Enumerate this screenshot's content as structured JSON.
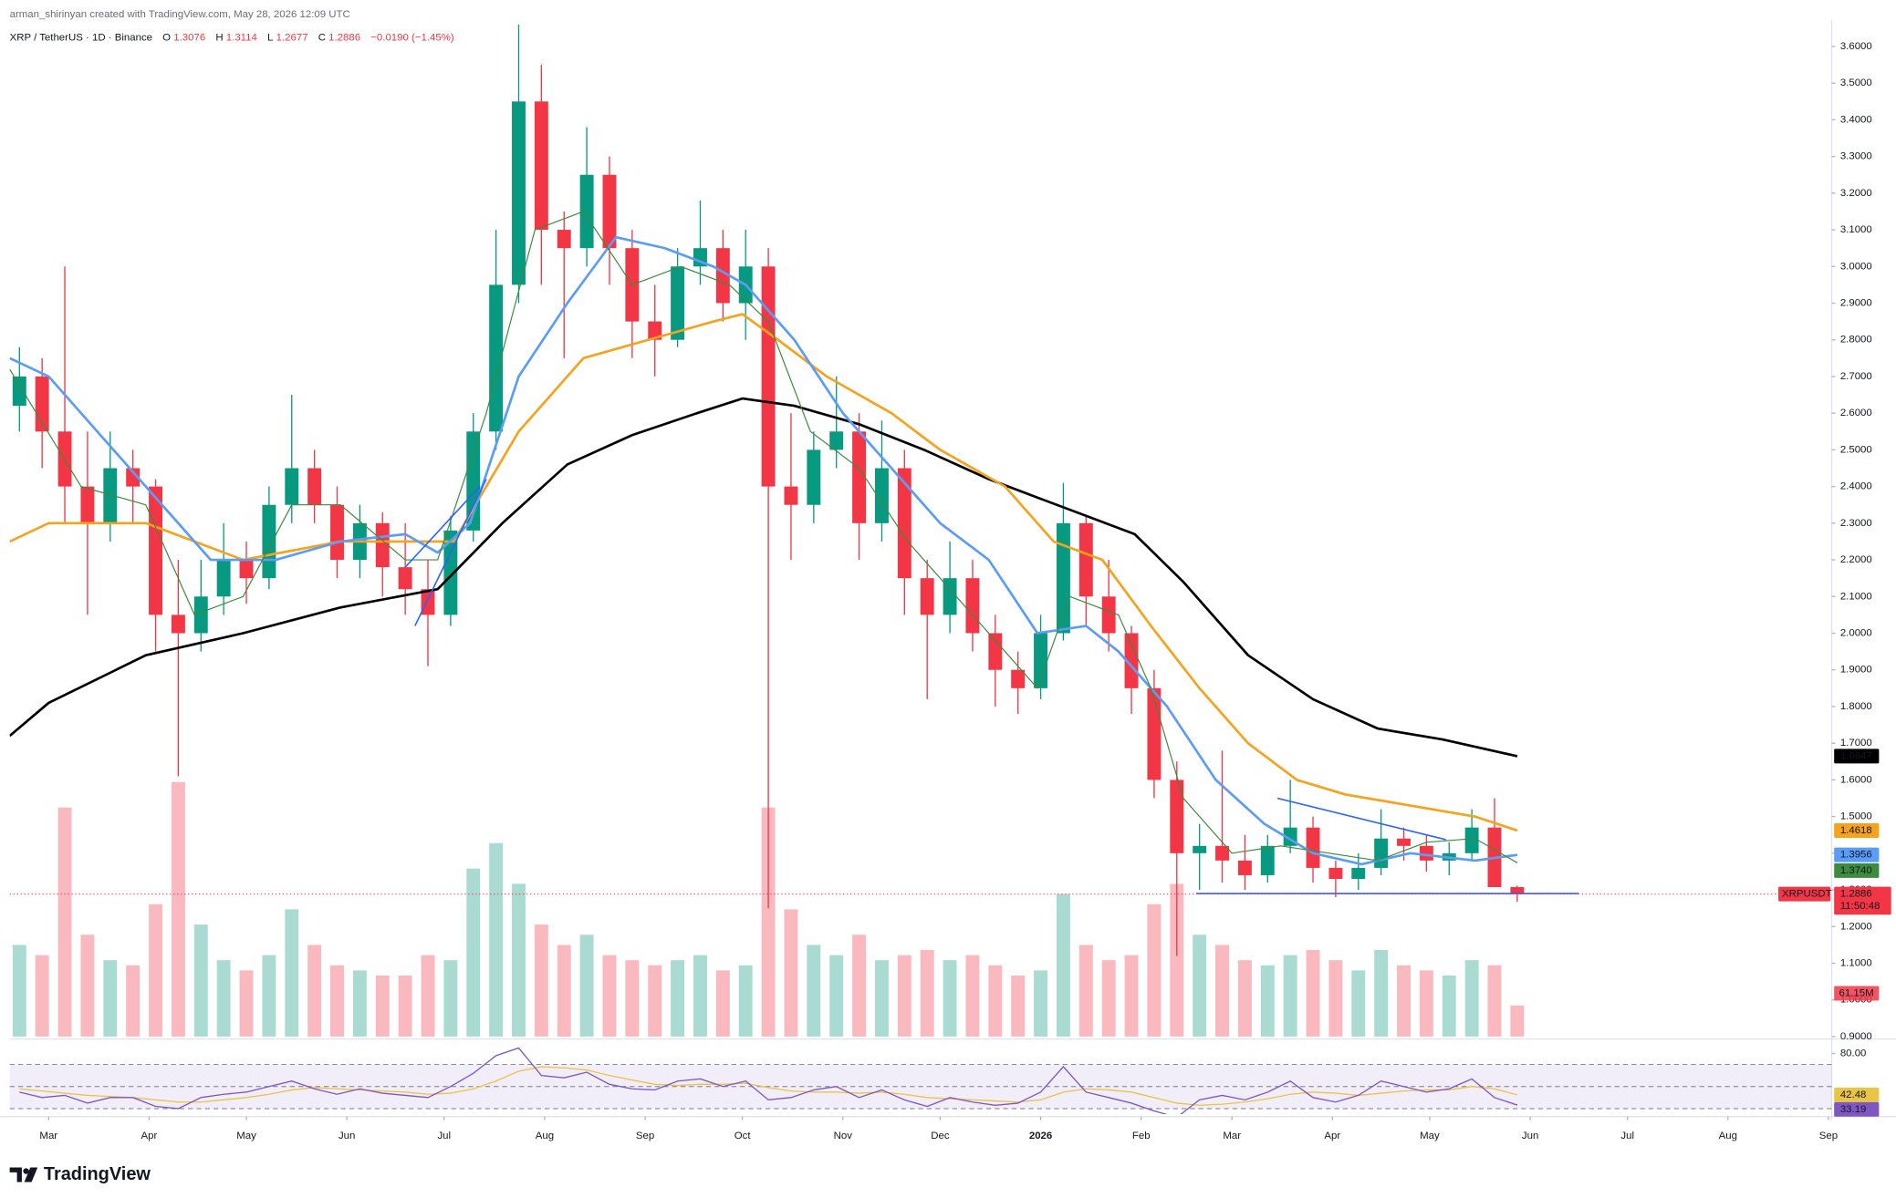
{
  "chart_data": {
    "type": "candlestick",
    "header": "arman_shirinyan created with TradingView.com, May 28, 2026 12:09 UTC",
    "symbol": "XRP / TetherUS · 1D · Binance",
    "ohlc_letters": [
      "O",
      "H",
      "L",
      "C"
    ],
    "change": "−0.0190 (−1.45%)",
    "up_color": "#089981",
    "down_color": "#f23645",
    "candles": {
      "x": [
        -9,
        -2,
        5,
        12,
        19,
        26,
        33,
        40,
        47,
        54,
        61,
        68,
        75,
        82,
        89,
        96,
        103,
        110,
        117,
        124,
        131,
        138,
        145,
        152,
        159,
        166,
        173,
        180,
        187,
        194,
        201,
        208,
        215,
        222,
        229,
        236,
        243,
        250,
        257,
        264,
        271,
        278,
        285,
        292,
        299,
        306,
        313,
        320,
        327,
        334,
        341,
        348,
        355,
        362,
        369,
        376,
        383,
        390,
        397,
        404,
        411,
        418,
        425,
        432,
        439,
        446,
        453
      ],
      "open": [
        2.62,
        2.7,
        2.55,
        2.4,
        2.3,
        2.45,
        2.4,
        2.05,
        2.0,
        2.1,
        2.2,
        2.15,
        2.35,
        2.45,
        2.35,
        2.2,
        2.3,
        2.18,
        2.12,
        2.05,
        2.28,
        2.55,
        2.95,
        3.45,
        3.1,
        3.05,
        3.25,
        3.05,
        2.85,
        2.8,
        3.0,
        3.05,
        2.9,
        3.0,
        2.4,
        2.35,
        2.5,
        2.55,
        2.3,
        2.45,
        2.15,
        2.05,
        2.15,
        2.0,
        1.9,
        1.85,
        2.0,
        2.3,
        2.1,
        2.0,
        1.85,
        1.6,
        1.4,
        1.42,
        1.38,
        1.34,
        1.42,
        1.47,
        1.36,
        1.33,
        1.36,
        1.44,
        1.42,
        1.38,
        1.4,
        1.47,
        1.3076
      ],
      "high": [
        2.78,
        2.75,
        3.0,
        2.55,
        2.55,
        2.5,
        2.42,
        2.2,
        2.2,
        2.3,
        2.25,
        2.4,
        2.65,
        2.5,
        2.4,
        2.35,
        2.33,
        2.3,
        2.2,
        2.32,
        2.6,
        3.1,
        3.66,
        3.55,
        3.15,
        3.38,
        3.3,
        3.1,
        2.95,
        3.05,
        3.18,
        3.1,
        3.1,
        3.05,
        2.6,
        2.55,
        2.7,
        2.6,
        2.58,
        2.5,
        2.2,
        2.25,
        2.2,
        2.05,
        1.95,
        2.05,
        2.41,
        2.32,
        2.2,
        2.02,
        1.9,
        1.65,
        1.48,
        1.68,
        1.45,
        1.45,
        1.6,
        1.5,
        1.38,
        1.4,
        1.52,
        1.47,
        1.45,
        1.43,
        1.52,
        1.55,
        1.3114
      ],
      "low": [
        2.55,
        2.45,
        2.3,
        2.05,
        2.25,
        2.3,
        1.95,
        1.61,
        1.95,
        2.05,
        2.08,
        2.12,
        2.3,
        2.3,
        2.15,
        2.15,
        2.1,
        2.05,
        1.91,
        2.02,
        2.25,
        2.5,
        2.9,
        2.95,
        2.75,
        3.0,
        2.95,
        2.75,
        2.7,
        2.78,
        2.95,
        2.85,
        2.8,
        1.25,
        2.2,
        2.3,
        2.45,
        2.2,
        2.25,
        2.05,
        1.82,
        2.0,
        1.95,
        1.8,
        1.78,
        1.82,
        1.98,
        2.02,
        1.95,
        1.78,
        1.55,
        1.12,
        1.3,
        1.32,
        1.3,
        1.32,
        1.4,
        1.32,
        1.28,
        1.3,
        1.34,
        1.38,
        1.35,
        1.34,
        1.38,
        1.34,
        1.2677
      ],
      "close": [
        2.7,
        2.55,
        2.4,
        2.3,
        2.45,
        2.4,
        2.05,
        2.0,
        2.1,
        2.2,
        2.15,
        2.35,
        2.45,
        2.35,
        2.2,
        2.3,
        2.18,
        2.12,
        2.05,
        2.28,
        2.55,
        2.95,
        3.45,
        3.1,
        3.05,
        3.25,
        3.05,
        2.85,
        2.8,
        3.0,
        3.05,
        2.9,
        3.0,
        2.4,
        2.35,
        2.5,
        2.55,
        2.3,
        2.45,
        2.15,
        2.05,
        2.15,
        2.0,
        1.9,
        1.85,
        2.0,
        2.3,
        2.1,
        2.0,
        1.85,
        1.6,
        1.4,
        1.42,
        1.38,
        1.34,
        1.42,
        1.47,
        1.36,
        1.33,
        1.36,
        1.44,
        1.42,
        1.38,
        1.4,
        1.47,
        1.3076,
        1.2886
      ],
      "volume": [
        180,
        160,
        450,
        200,
        150,
        140,
        260,
        500,
        220,
        150,
        130,
        160,
        250,
        180,
        140,
        130,
        120,
        120,
        160,
        150,
        330,
        380,
        300,
        220,
        180,
        200,
        160,
        150,
        140,
        150,
        160,
        130,
        140,
        450,
        250,
        180,
        160,
        200,
        150,
        160,
        170,
        150,
        160,
        140,
        120,
        130,
        280,
        180,
        150,
        160,
        260,
        300,
        200,
        180,
        150,
        140,
        160,
        170,
        150,
        130,
        170,
        140,
        130,
        120,
        150,
        140,
        61.15
      ]
    },
    "volume_lim": [
      0,
      500
    ],
    "volume_last_label": "61.15M",
    "xlim": [
      -12,
      550
    ],
    "ylim": [
      0.9,
      3.66
    ],
    "xticks": [
      {
        "value": 0,
        "label": "Mar"
      },
      {
        "value": 31,
        "label": "Apr"
      },
      {
        "value": 61,
        "label": "May"
      },
      {
        "value": 92,
        "label": "Jun"
      },
      {
        "value": 122,
        "label": "Jul"
      },
      {
        "value": 153,
        "label": "Aug"
      },
      {
        "value": 184,
        "label": "Sep"
      },
      {
        "value": 214,
        "label": "Oct"
      },
      {
        "value": 245,
        "label": "Nov"
      },
      {
        "value": 275,
        "label": "Dec"
      },
      {
        "value": 306,
        "label": "2026"
      },
      {
        "value": 337,
        "label": "Feb"
      },
      {
        "value": 365,
        "label": "Mar"
      },
      {
        "value": 396,
        "label": "Apr"
      },
      {
        "value": 426,
        "label": "May"
      },
      {
        "value": 457,
        "label": "Jun"
      },
      {
        "value": 487,
        "label": "Jul"
      },
      {
        "value": 518,
        "label": "Aug"
      },
      {
        "value": 549,
        "label": "Sep"
      }
    ],
    "yticks": [
      {
        "value": 0.9,
        "label": "0.9000"
      },
      {
        "value": 1.0,
        "label": "1.0000"
      },
      {
        "value": 1.1,
        "label": "1.1000"
      },
      {
        "value": 1.2,
        "label": "1.2000"
      },
      {
        "value": 1.3,
        "label": "1.3000"
      },
      {
        "value": 1.4,
        "label": "1.4000"
      },
      {
        "value": 1.5,
        "label": "1.5000"
      },
      {
        "value": 1.6,
        "label": "1.6000"
      },
      {
        "value": 1.7,
        "label": "1.7000"
      },
      {
        "value": 1.8,
        "label": "1.8000"
      },
      {
        "value": 1.9,
        "label": "1.9000"
      },
      {
        "value": 2.0,
        "label": "2.0000"
      },
      {
        "value": 2.1,
        "label": "2.1000"
      },
      {
        "value": 2.2,
        "label": "2.2000"
      },
      {
        "value": 2.3,
        "label": "2.3000"
      },
      {
        "value": 2.4,
        "label": "2.4000"
      },
      {
        "value": 2.5,
        "label": "2.5000"
      },
      {
        "value": 2.6,
        "label": "2.6000"
      },
      {
        "value": 2.7,
        "label": "2.7000"
      },
      {
        "value": 2.8,
        "label": "2.8000"
      },
      {
        "value": 2.9,
        "label": "2.9000"
      },
      {
        "value": 3.0,
        "label": "3.0000"
      },
      {
        "value": 3.1,
        "label": "3.1000"
      },
      {
        "value": 3.2,
        "label": "3.2000"
      },
      {
        "value": 3.3,
        "label": "3.3000"
      },
      {
        "value": 3.4,
        "label": "3.4000"
      },
      {
        "value": 3.5,
        "label": "3.5000"
      },
      {
        "value": 3.6,
        "label": "3.6000"
      }
    ],
    "grid": false,
    "lines": [
      {
        "color": "#000000",
        "x": [
          -12,
          0,
          30,
          60,
          90,
          120,
          140,
          160,
          180,
          200,
          214,
          230,
          250,
          270,
          290,
          305,
          320,
          335,
          350,
          370,
          390,
          410,
          430,
          453
        ],
        "values": [
          1.72,
          1.81,
          1.94,
          2.0,
          2.07,
          2.12,
          2.3,
          2.46,
          2.54,
          2.6,
          2.64,
          2.62,
          2.57,
          2.5,
          2.42,
          2.37,
          2.32,
          2.27,
          2.14,
          1.94,
          1.82,
          1.74,
          1.71,
          1.6647
        ],
        "last_label": "1.6647"
      },
      {
        "color": "#f7a21b",
        "x": [
          -12,
          0,
          30,
          60,
          90,
          110,
          125,
          145,
          165,
          185,
          205,
          214,
          225,
          240,
          260,
          275,
          295,
          310,
          325,
          340,
          355,
          370,
          385,
          400,
          420,
          440,
          453
        ],
        "values": [
          2.25,
          2.3,
          2.3,
          2.2,
          2.25,
          2.25,
          2.25,
          2.55,
          2.75,
          2.8,
          2.85,
          2.87,
          2.8,
          2.7,
          2.6,
          2.5,
          2.4,
          2.25,
          2.2,
          2.02,
          1.85,
          1.7,
          1.6,
          1.56,
          1.53,
          1.5,
          1.4618
        ],
        "last_label": "1.4618"
      },
      {
        "color": "#5b9cf6",
        "x": [
          -12,
          0,
          20,
          30,
          50,
          70,
          90,
          110,
          120,
          130,
          145,
          160,
          175,
          190,
          205,
          215,
          230,
          245,
          260,
          275,
          290,
          305,
          320,
          330,
          345,
          360,
          375,
          390,
          405,
          420,
          440,
          453
        ],
        "values": [
          2.75,
          2.7,
          2.5,
          2.4,
          2.2,
          2.2,
          2.25,
          2.27,
          2.22,
          2.3,
          2.7,
          2.9,
          3.08,
          3.05,
          3.0,
          2.95,
          2.8,
          2.6,
          2.45,
          2.3,
          2.2,
          2.0,
          2.02,
          1.95,
          1.8,
          1.6,
          1.48,
          1.4,
          1.37,
          1.4,
          1.38,
          1.3956
        ],
        "last_label": "1.3956"
      },
      {
        "color": "#3d8b3d",
        "x": [
          -12,
          10,
          30,
          45,
          60,
          75,
          90,
          110,
          120,
          135,
          150,
          165,
          180,
          195,
          210,
          222,
          235,
          250,
          265,
          280,
          295,
          305,
          315,
          330,
          340,
          350,
          365,
          380,
          395,
          410,
          425,
          440,
          453
        ],
        "values": [
          2.72,
          2.4,
          2.35,
          2.05,
          2.1,
          2.35,
          2.35,
          2.2,
          2.2,
          2.6,
          3.1,
          3.15,
          2.95,
          3.0,
          2.95,
          2.85,
          2.55,
          2.45,
          2.25,
          2.1,
          1.95,
          1.85,
          2.1,
          2.05,
          1.85,
          1.55,
          1.4,
          1.42,
          1.4,
          1.38,
          1.43,
          1.44,
          1.374
        ],
        "last_label": "1.3740"
      }
    ],
    "drawings_color": "#2962ff",
    "drawings": [
      {
        "x": [
          354,
          472
        ],
        "y": [
          1.29,
          1.29
        ]
      },
      {
        "x": [
          379,
          431
        ],
        "y": [
          1.55,
          1.437
        ]
      },
      {
        "x": [
          113,
          135
        ],
        "y": [
          2.02,
          2.42
        ]
      },
      {
        "x": [
          110,
          133
        ],
        "y": [
          2.18,
          2.4
        ]
      }
    ],
    "price_tag": {
      "symbol": "XRPUSDT",
      "countdown": "11:50:48"
    },
    "rsi": {
      "color": "#7e57c2",
      "ma_color": "#e8c547",
      "ylim": [
        25,
        92
      ],
      "levels": [
        70,
        50,
        30
      ],
      "ticks": [
        {
          "value": 80,
          "label": "80.00"
        }
      ],
      "values": [
        45,
        40,
        42,
        35,
        40,
        40,
        32,
        30,
        40,
        43,
        45,
        50,
        55,
        48,
        43,
        48,
        44,
        42,
        40,
        50,
        62,
        78,
        85,
        60,
        58,
        63,
        52,
        48,
        47,
        55,
        57,
        50,
        55,
        38,
        40,
        47,
        50,
        40,
        47,
        38,
        32,
        40,
        36,
        33,
        35,
        45,
        68,
        45,
        40,
        35,
        28,
        22,
        38,
        42,
        38,
        45,
        55,
        40,
        36,
        42,
        55,
        50,
        45,
        48,
        57,
        40,
        33.19
      ],
      "ma": [
        48,
        46,
        44,
        42,
        41,
        40,
        38,
        36,
        36,
        38,
        40,
        43,
        47,
        49,
        48,
        47,
        46,
        45,
        43,
        44,
        48,
        55,
        64,
        68,
        67,
        65,
        60,
        56,
        52,
        51,
        52,
        52,
        53,
        49,
        46,
        45,
        45,
        44,
        45,
        43,
        40,
        39,
        38,
        37,
        36,
        38,
        45,
        48,
        47,
        45,
        40,
        35,
        33,
        34,
        36,
        39,
        43,
        45,
        44,
        42,
        44,
        46,
        47,
        47,
        50,
        48,
        42.48
      ]
    },
    "brand": "TradingView"
  }
}
